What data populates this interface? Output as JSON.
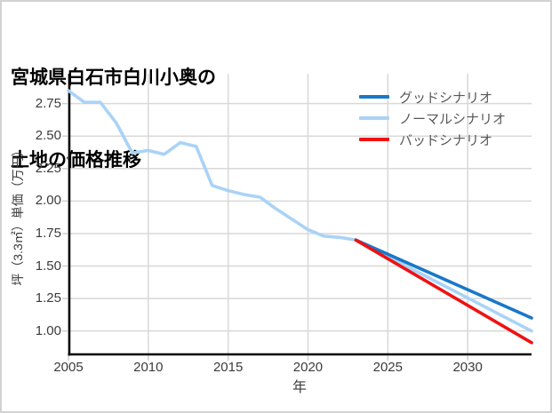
{
  "window": {
    "background": "#ffffff",
    "border_color": "#d2d2d2"
  },
  "title": {
    "line1": "宮城県白石市白川小奥の",
    "line2": "土地の価格推移"
  },
  "colors": {
    "grid": "#d8d8d8",
    "axis": "#000000",
    "tick": "#cfcfcf",
    "tick_text": "#3b3b3b",
    "legend_text": "#595959",
    "title_text": "#000000"
  },
  "chart_data": {
    "type": "line",
    "title": "宮城県白石市白川小奥の土地の価格推移",
    "xlabel": "年",
    "ylabel": "坪（3.3㎡）単価（万円）",
    "xlim": [
      2005,
      2034
    ],
    "ylim": [
      0.82,
      2.98
    ],
    "x_ticks": [
      "2005",
      "2010",
      "2015",
      "2020",
      "2025",
      "2030"
    ],
    "y_ticks": [
      "2.75",
      "2.50",
      "2.25",
      "2.00",
      "1.75",
      "1.50",
      "1.25",
      "1.00"
    ],
    "grid": true,
    "legend_position": "top-right",
    "series": [
      {
        "id": "good-scenario",
        "name": "グッドシナリオ",
        "color": "#1878c8",
        "x": [
          2023,
          2034
        ],
        "y": [
          1.7,
          1.1
        ]
      },
      {
        "id": "normal-scenario",
        "name": "ノーマルシナリオ",
        "color": "#a9d3f7",
        "x": [
          2005,
          2006,
          2007,
          2008,
          2009,
          2010,
          2011,
          2012,
          2013,
          2014,
          2015,
          2016,
          2017,
          2018,
          2019,
          2020,
          2021,
          2022,
          2023,
          2034
        ],
        "y": [
          2.85,
          2.76,
          2.76,
          2.6,
          2.37,
          2.39,
          2.36,
          2.45,
          2.42,
          2.12,
          2.08,
          2.05,
          2.03,
          1.94,
          1.86,
          1.78,
          1.73,
          1.72,
          1.7,
          1.0
        ]
      },
      {
        "id": "bad-scenario",
        "name": "バッドシナリオ",
        "color": "#ef1111",
        "x": [
          2023,
          2034
        ],
        "y": [
          1.7,
          0.91
        ]
      }
    ]
  }
}
